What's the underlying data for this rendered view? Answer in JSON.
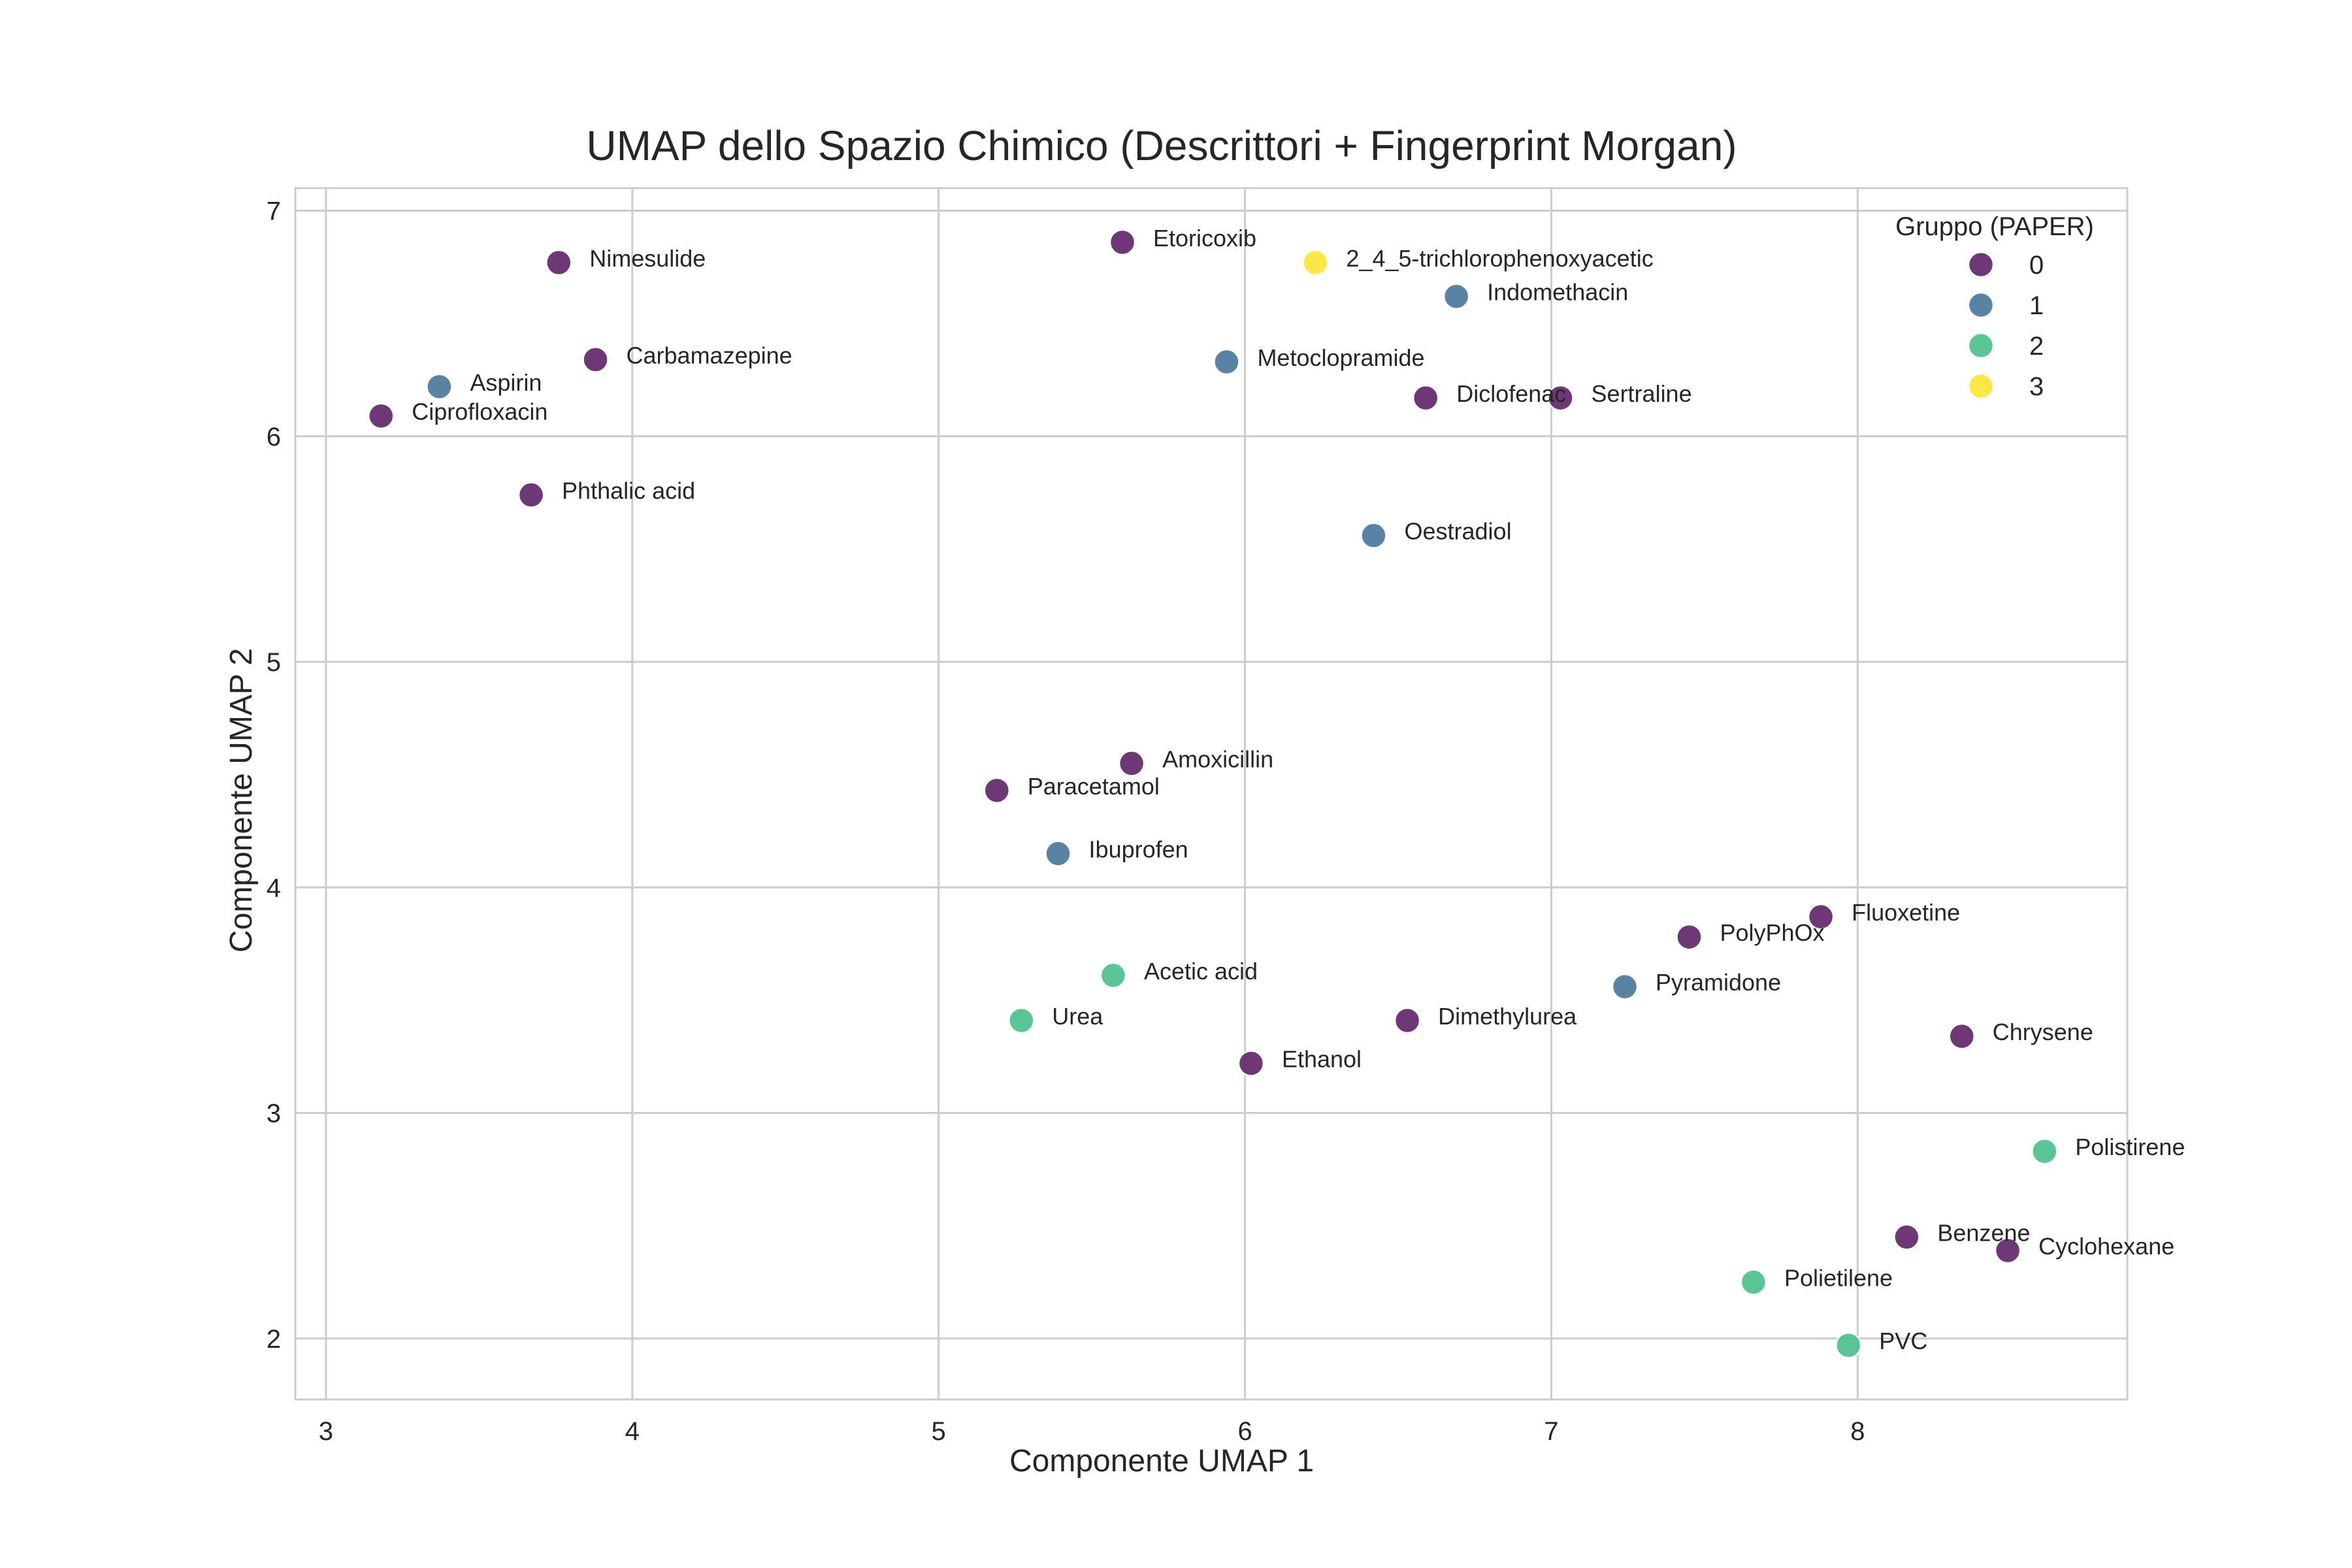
{
  "chart_data": {
    "type": "scatter",
    "title": "UMAP dello Spazio Chimico (Descrittori + Fingerprint Morgan)",
    "xlabel": "Componente UMAP 1",
    "ylabel": "Componente UMAP 2",
    "xlim": [
      2.9,
      8.88
    ],
    "ylim": [
      1.73,
      7.1
    ],
    "xticks": [
      3,
      4,
      5,
      6,
      7,
      8
    ],
    "yticks": [
      2,
      3,
      4,
      5,
      6,
      7
    ],
    "grid": true,
    "legend": {
      "title": "Gruppo (PAPER)",
      "placement": "top-right",
      "entries": [
        "0",
        "1",
        "2",
        "3"
      ]
    },
    "group_colors": {
      "0": "#5d2266",
      "1": "#46759a",
      "2": "#49c08a",
      "3": "#fde432"
    },
    "points": [
      {
        "label": "Nimesulide",
        "x": 3.76,
        "y": 6.77,
        "group": "0"
      },
      {
        "label": "Etoricoxib",
        "x": 5.6,
        "y": 6.86,
        "group": "0"
      },
      {
        "label": "2_4_5-trichlorophenoxyacetic",
        "x": 6.23,
        "y": 6.77,
        "group": "3"
      },
      {
        "label": "Indomethacin",
        "x": 6.69,
        "y": 6.62,
        "group": "1"
      },
      {
        "label": "Carbamazepine",
        "x": 3.88,
        "y": 6.34,
        "group": "0"
      },
      {
        "label": "Metoclopramide",
        "x": 5.94,
        "y": 6.33,
        "group": "1"
      },
      {
        "label": "Aspirin",
        "x": 3.37,
        "y": 6.22,
        "group": "1"
      },
      {
        "label": "Ciprofloxacin",
        "x": 3.18,
        "y": 6.09,
        "group": "0"
      },
      {
        "label": "Diclofenac",
        "x": 6.59,
        "y": 6.17,
        "group": "0"
      },
      {
        "label": "Sertraline",
        "x": 7.03,
        "y": 6.17,
        "group": "0"
      },
      {
        "label": "Phthalic acid",
        "x": 3.67,
        "y": 5.74,
        "group": "0"
      },
      {
        "label": "Oestradiol",
        "x": 6.42,
        "y": 5.56,
        "group": "1"
      },
      {
        "label": "Amoxicillin",
        "x": 5.63,
        "y": 4.55,
        "group": "0"
      },
      {
        "label": "Paracetamol",
        "x": 5.19,
        "y": 4.43,
        "group": "0"
      },
      {
        "label": "Ibuprofen",
        "x": 5.39,
        "y": 4.15,
        "group": "1"
      },
      {
        "label": "Fluoxetine",
        "x": 7.88,
        "y": 3.87,
        "group": "0"
      },
      {
        "label": "PolyPhOx",
        "x": 7.45,
        "y": 3.78,
        "group": "0"
      },
      {
        "label": "Acetic acid",
        "x": 5.57,
        "y": 3.61,
        "group": "2"
      },
      {
        "label": "Pyramidone",
        "x": 7.24,
        "y": 3.56,
        "group": "1"
      },
      {
        "label": "Urea",
        "x": 5.27,
        "y": 3.41,
        "group": "2"
      },
      {
        "label": "Dimethylurea",
        "x": 6.53,
        "y": 3.41,
        "group": "0"
      },
      {
        "label": "Chrysene",
        "x": 8.34,
        "y": 3.34,
        "group": "0"
      },
      {
        "label": "Ethanol",
        "x": 6.02,
        "y": 3.22,
        "group": "0"
      },
      {
        "label": "Polistirene",
        "x": 8.61,
        "y": 2.83,
        "group": "2"
      },
      {
        "label": "Benzene",
        "x": 8.16,
        "y": 2.45,
        "group": "0"
      },
      {
        "label": "Cyclohexane",
        "x": 8.49,
        "y": 2.39,
        "group": "0"
      },
      {
        "label": "Polietilene",
        "x": 7.66,
        "y": 2.25,
        "group": "2"
      },
      {
        "label": "PVC",
        "x": 7.97,
        "y": 1.97,
        "group": "2"
      }
    ]
  }
}
